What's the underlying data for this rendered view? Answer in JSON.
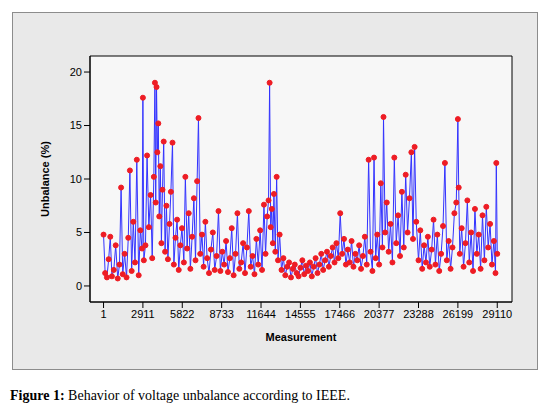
{
  "chart_data": {
    "type": "line",
    "x_label": "Measurement",
    "y_label": "Unbalance (%)",
    "caption_label": "Figure 1:",
    "caption": "Behavior of voltage unbalance according to IEEE.",
    "color": "#ee1c24",
    "marker": "circle",
    "line_style": "solid",
    "grid": false,
    "xlim": [
      -1000,
      30200
    ],
    "xticks": [
      1,
      2911,
      5822,
      8733,
      11644,
      14555,
      17466,
      20377,
      23288,
      26199,
      29110
    ],
    "ylim": [
      -1.5,
      21.5
    ],
    "yticks": [
      0,
      5,
      10,
      15,
      20
    ],
    "x": [
      1,
      120,
      250,
      380,
      500,
      620,
      760,
      900,
      1050,
      1180,
      1300,
      1420,
      1560,
      1700,
      1830,
      1950,
      2080,
      2200,
      2330,
      2460,
      2600,
      2720,
      2850,
      2911,
      2980,
      3100,
      3220,
      3350,
      3480,
      3600,
      3720,
      3800,
      3860,
      3920,
      3980,
      4050,
      4120,
      4200,
      4280,
      4360,
      4450,
      4550,
      4650,
      4760,
      4880,
      4980,
      5100,
      5200,
      5320,
      5440,
      5560,
      5680,
      5800,
      5940,
      6050,
      6180,
      6300,
      6420,
      6550,
      6680,
      6800,
      6920,
      7020,
      7150,
      7280,
      7400,
      7530,
      7660,
      7800,
      7940,
      8080,
      8220,
      8360,
      8500,
      8640,
      8780,
      8920,
      9060,
      9200,
      9340,
      9480,
      9620,
      9760,
      9900,
      10040,
      10180,
      10320,
      10460,
      10600,
      10740,
      10880,
      11020,
      11160,
      11300,
      11440,
      11580,
      11720,
      11860,
      11980,
      12100,
      12200,
      12280,
      12360,
      12440,
      12520,
      12600,
      12700,
      12800,
      12900,
      13020,
      13160,
      13300,
      13440,
      13580,
      13720,
      13860,
      14000,
      14140,
      14280,
      14420,
      14560,
      14700,
      14840,
      14980,
      15120,
      15260,
      15400,
      15540,
      15680,
      15820,
      15960,
      16100,
      16240,
      16380,
      16520,
      16660,
      16800,
      16940,
      17080,
      17220,
      17360,
      17500,
      17640,
      17780,
      17920,
      18060,
      18200,
      18340,
      18480,
      18620,
      18760,
      18900,
      19040,
      19180,
      19320,
      19460,
      19600,
      19740,
      19880,
      20000,
      20120,
      20240,
      20377,
      20500,
      20620,
      20700,
      20820,
      20940,
      21080,
      21220,
      21360,
      21500,
      21640,
      21780,
      21920,
      22060,
      22200,
      22340,
      22480,
      22620,
      22760,
      22880,
      23000,
      23120,
      23288,
      23420,
      23560,
      23700,
      23840,
      23980,
      24120,
      24260,
      24400,
      24540,
      24680,
      24820,
      24960,
      25100,
      25240,
      25380,
      25520,
      25660,
      25800,
      25940,
      26080,
      26199,
      26260,
      26340,
      26480,
      26620,
      26760,
      26900,
      27040,
      27180,
      27320,
      27460,
      27600,
      27740,
      27880,
      28020,
      28160,
      28300,
      28440,
      28580,
      28720,
      28860,
      28980,
      29040,
      29110
    ],
    "values": [
      4.8,
      1.2,
      0.8,
      2.5,
      4.6,
      0.9,
      1.5,
      3.8,
      0.7,
      2.0,
      9.2,
      1.1,
      3.0,
      0.8,
      4.5,
      10.8,
      1.4,
      6.0,
      2.2,
      11.8,
      1.0,
      5.2,
      3.5,
      17.6,
      2.4,
      3.8,
      12.2,
      5.5,
      8.5,
      2.6,
      10.2,
      19.0,
      7.8,
      18.6,
      12.5,
      15.2,
      6.5,
      11.2,
      4.0,
      9.0,
      13.5,
      3.2,
      7.5,
      2.5,
      5.8,
      8.8,
      13.4,
      2.0,
      4.5,
      6.2,
      1.5,
      3.8,
      5.4,
      2.2,
      10.2,
      3.5,
      6.8,
      1.6,
      4.6,
      8.2,
      2.4,
      9.8,
      15.7,
      3.0,
      4.8,
      1.8,
      6.0,
      2.6,
      1.2,
      3.4,
      5.0,
      1.5,
      2.8,
      7.0,
      1.4,
      3.2,
      2.0,
      4.2,
      1.3,
      2.6,
      5.4,
      1.0,
      3.0,
      6.8,
      1.6,
      2.2,
      4.0,
      1.2,
      3.6,
      7.0,
      1.8,
      2.8,
      1.1,
      4.4,
      2.0,
      5.2,
      1.5,
      7.6,
      3.0,
      6.5,
      8.0,
      19.0,
      5.5,
      7.2,
      4.0,
      8.6,
      3.2,
      10.2,
      2.4,
      4.8,
      1.5,
      2.6,
      1.0,
      1.8,
      2.2,
      0.8,
      1.6,
      2.0,
      1.2,
      0.9,
      1.7,
      2.4,
      1.1,
      1.9,
      1.4,
      2.2,
      0.9,
      1.8,
      2.6,
      1.2,
      2.0,
      3.0,
      1.5,
      2.4,
      3.2,
      1.8,
      2.8,
      3.6,
      2.2,
      4.0,
      2.6,
      6.8,
      3.0,
      4.4,
      2.0,
      3.4,
      2.2,
      4.2,
      1.8,
      3.0,
      2.4,
      3.8,
      1.6,
      2.8,
      4.6,
      2.0,
      11.8,
      3.2,
      1.4,
      12.0,
      2.6,
      4.8,
      2.0,
      9.6,
      3.6,
      15.8,
      5.0,
      7.8,
      3.2,
      5.8,
      2.2,
      12.0,
      4.0,
      6.6,
      2.8,
      8.8,
      3.6,
      10.4,
      5.0,
      8.2,
      12.5,
      4.4,
      13.0,
      6.0,
      2.4,
      5.2,
      1.6,
      3.8,
      2.2,
      4.6,
      1.8,
      3.4,
      6.2,
      2.0,
      4.8,
      1.4,
      3.0,
      5.6,
      11.5,
      2.4,
      4.2,
      1.6,
      3.6,
      6.8,
      7.8,
      15.6,
      9.2,
      3.0,
      5.4,
      1.8,
      4.0,
      8.0,
      2.2,
      5.0,
      1.4,
      7.2,
      3.0,
      4.8,
      1.6,
      6.6,
      2.4,
      7.4,
      3.6,
      5.8,
      2.0,
      4.2,
      1.2,
      11.5,
      3.0
    ]
  }
}
